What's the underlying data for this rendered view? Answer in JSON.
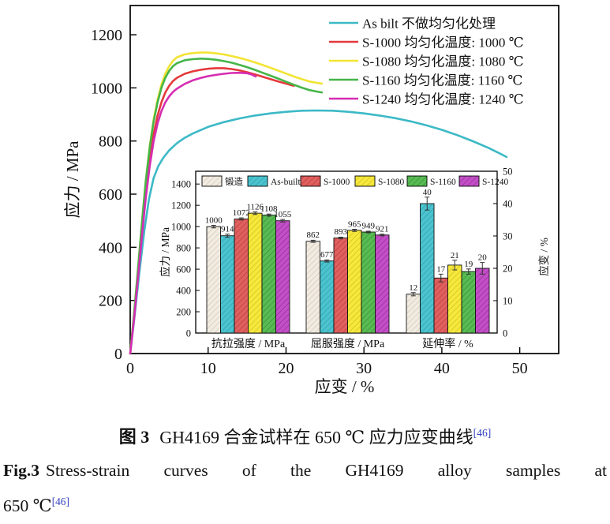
{
  "figure_caption": {
    "cn_prefix": "图 3",
    "cn_text": "GH4169 合金试样在 650 ℃ 应力应变曲线",
    "en_prefix": "Fig.3",
    "en_line1": "Stress-strain curves of the GH4169 alloy samples at",
    "en_line2": "650 ℃",
    "ref": "[46]",
    "ref_color": "#3340c0"
  },
  "chart_data": [
    {
      "type": "line",
      "title": "",
      "xlabel": "应变 / %",
      "ylabel": "应力 / MPa",
      "xlim": [
        0,
        55
      ],
      "ylim": [
        0,
        1310
      ],
      "xticks": [
        0,
        10,
        20,
        30,
        40,
        50
      ],
      "yticks": [
        0,
        200,
        400,
        600,
        800,
        1000,
        1200
      ],
      "grid": false,
      "legend_position": "top-right-inside",
      "series": [
        {
          "name": "As bilt",
          "legend_label": "As bilt  不做均匀化处理",
          "color": "#3cb9c6",
          "points": [
            [
              0,
              0
            ],
            [
              0.6,
              150
            ],
            [
              1.2,
              310
            ],
            [
              1.8,
              460
            ],
            [
              2.4,
              580
            ],
            [
              3,
              660
            ],
            [
              3.6,
              705
            ],
            [
              4.2,
              735
            ],
            [
              5,
              765
            ],
            [
              6,
              792
            ],
            [
              7,
              812
            ],
            [
              8,
              828
            ],
            [
              10,
              853
            ],
            [
              12,
              871
            ],
            [
              14,
              885
            ],
            [
              16,
              896
            ],
            [
              18,
              904
            ],
            [
              20,
              910
            ],
            [
              22,
              914
            ],
            [
              24,
              915
            ],
            [
              26,
              914
            ],
            [
              28,
              910
            ],
            [
              30,
              904
            ],
            [
              32,
              896
            ],
            [
              34,
              886
            ],
            [
              36,
              874
            ],
            [
              38,
              859
            ],
            [
              40,
              842
            ],
            [
              42,
              822
            ],
            [
              44,
              799
            ],
            [
              46,
              774
            ],
            [
              47.5,
              752
            ],
            [
              48.3,
              740
            ]
          ]
        },
        {
          "name": "S-1000",
          "legend_label": "S-1000 均匀化温度: 1000 ℃",
          "color": "#e4393c",
          "points": [
            [
              0,
              0
            ],
            [
              0.5,
              140
            ],
            [
              1,
              300
            ],
            [
              1.5,
              460
            ],
            [
              2,
              610
            ],
            [
              2.5,
              730
            ],
            [
              3,
              825
            ],
            [
              3.5,
              895
            ],
            [
              4,
              945
            ],
            [
              4.5,
              982
            ],
            [
              5,
              1008
            ],
            [
              5.5,
              1026
            ],
            [
              6,
              1038
            ],
            [
              7,
              1053
            ],
            [
              8,
              1062
            ],
            [
              9,
              1068
            ],
            [
              10,
              1072
            ],
            [
              11,
              1074
            ],
            [
              12,
              1074
            ],
            [
              13,
              1071
            ],
            [
              14,
              1066
            ],
            [
              15,
              1059
            ],
            [
              16,
              1051
            ],
            [
              17,
              1042
            ],
            [
              18,
              1033
            ],
            [
              19,
              1024
            ],
            [
              20,
              1016
            ],
            [
              21,
              1008
            ]
          ]
        },
        {
          "name": "S-1080",
          "legend_label": "S-1080 均匀化温度: 1080 ℃",
          "color": "#f2e433",
          "points": [
            [
              0,
              0
            ],
            [
              0.5,
              150
            ],
            [
              1,
              320
            ],
            [
              1.5,
              490
            ],
            [
              2,
              650
            ],
            [
              2.5,
              780
            ],
            [
              3,
              880
            ],
            [
              3.5,
              955
            ],
            [
              4,
              1012
            ],
            [
              4.5,
              1053
            ],
            [
              5,
              1082
            ],
            [
              5.5,
              1102
            ],
            [
              6,
              1115
            ],
            [
              7,
              1126
            ],
            [
              8,
              1131
            ],
            [
              9,
              1133
            ],
            [
              10,
              1133
            ],
            [
              11,
              1130
            ],
            [
              12,
              1126
            ],
            [
              13,
              1120
            ],
            [
              14,
              1113
            ],
            [
              15,
              1105
            ],
            [
              16,
              1096
            ],
            [
              17,
              1086
            ],
            [
              18,
              1076
            ],
            [
              19,
              1065
            ],
            [
              20,
              1054
            ],
            [
              21,
              1043
            ],
            [
              22,
              1033
            ],
            [
              23,
              1024
            ],
            [
              24,
              1019
            ],
            [
              24.6,
              1016
            ]
          ]
        },
        {
          "name": "S-1160",
          "legend_label": "S-1160 均匀化温度: 1160 ℃",
          "color": "#45b549",
          "points": [
            [
              0,
              0
            ],
            [
              0.5,
              150
            ],
            [
              1,
              320
            ],
            [
              1.5,
              490
            ],
            [
              2,
              648
            ],
            [
              2.5,
              775
            ],
            [
              3,
              872
            ],
            [
              3.5,
              945
            ],
            [
              4,
              1000
            ],
            [
              4.5,
              1038
            ],
            [
              5,
              1064
            ],
            [
              5.5,
              1082
            ],
            [
              6,
              1093
            ],
            [
              7,
              1104
            ],
            [
              8,
              1108
            ],
            [
              9,
              1110
            ],
            [
              10,
              1109
            ],
            [
              11,
              1106
            ],
            [
              12,
              1101
            ],
            [
              13,
              1095
            ],
            [
              14,
              1087
            ],
            [
              15,
              1078
            ],
            [
              16,
              1068
            ],
            [
              17,
              1057
            ],
            [
              18,
              1046
            ],
            [
              19,
              1035
            ],
            [
              20,
              1023
            ],
            [
              21,
              1012
            ],
            [
              22,
              1001
            ],
            [
              23,
              992
            ],
            [
              24,
              986
            ],
            [
              24.6,
              983
            ]
          ]
        },
        {
          "name": "S-1240",
          "legend_label": "S-1240 均匀化温度: 1240 ℃",
          "color": "#d52db2",
          "points": [
            [
              0,
              0
            ],
            [
              0.5,
              130
            ],
            [
              1,
              285
            ],
            [
              1.5,
              440
            ],
            [
              2,
              585
            ],
            [
              2.5,
              705
            ],
            [
              3,
              798
            ],
            [
              3.5,
              865
            ],
            [
              4,
              912
            ],
            [
              4.5,
              945
            ],
            [
              5,
              968
            ],
            [
              5.5,
              985
            ],
            [
              6,
              997
            ],
            [
              7,
              1015
            ],
            [
              8,
              1028
            ],
            [
              9,
              1037
            ],
            [
              10,
              1044
            ],
            [
              11,
              1049
            ],
            [
              12,
              1053
            ],
            [
              13,
              1056
            ],
            [
              14,
              1057
            ],
            [
              15,
              1055
            ],
            [
              15.6,
              1050
            ],
            [
              16.1,
              1043
            ]
          ]
        }
      ]
    },
    {
      "type": "bar",
      "title": "",
      "categories": [
        "抗拉强度 / MPa",
        "屈服强度 / MPa",
        "延伸率 / %"
      ],
      "ylabel_left": "应力 / MPa",
      "ylabel_right": "应变 / %",
      "ylim_left": [
        0,
        1520
      ],
      "ylim_right": [
        0,
        50
      ],
      "yticks_left": [
        0,
        200,
        400,
        600,
        800,
        1000,
        1200,
        1400
      ],
      "yticks_right": [
        0,
        10,
        20,
        30,
        40,
        50
      ],
      "grid": false,
      "legend_position": "top-inside",
      "series": [
        {
          "name": "锻造",
          "color": "#f1ebe1",
          "hatch": "#cdc5b6",
          "values": [
            1000,
            862,
            12
          ],
          "errors": [
            12,
            10,
            0.5
          ]
        },
        {
          "name": "As-built",
          "color": "#4cc3ce",
          "hatch": "#27a0ad",
          "values": [
            914,
            677,
            40
          ],
          "errors": [
            15,
            10,
            2
          ]
        },
        {
          "name": "S-1000",
          "color": "#e05f5f",
          "hatch": "#b93a3a",
          "values": [
            1072,
            893,
            17
          ],
          "errors": [
            10,
            8,
            1.2
          ]
        },
        {
          "name": "S-1080",
          "color": "#f6e83c",
          "hatch": "#cdbd1e",
          "values": [
            1126,
            965,
            21
          ],
          "errors": [
            12,
            10,
            1.5
          ]
        },
        {
          "name": "S-1160",
          "color": "#58bb53",
          "hatch": "#338f30",
          "values": [
            1108,
            949,
            19
          ],
          "errors": [
            10,
            8,
            0.8
          ]
        },
        {
          "name": "S-1240",
          "color": "#c34fc6",
          "hatch": "#93289a",
          "values": [
            1055,
            921,
            20
          ],
          "errors": [
            12,
            8,
            1.8
          ]
        }
      ]
    }
  ]
}
